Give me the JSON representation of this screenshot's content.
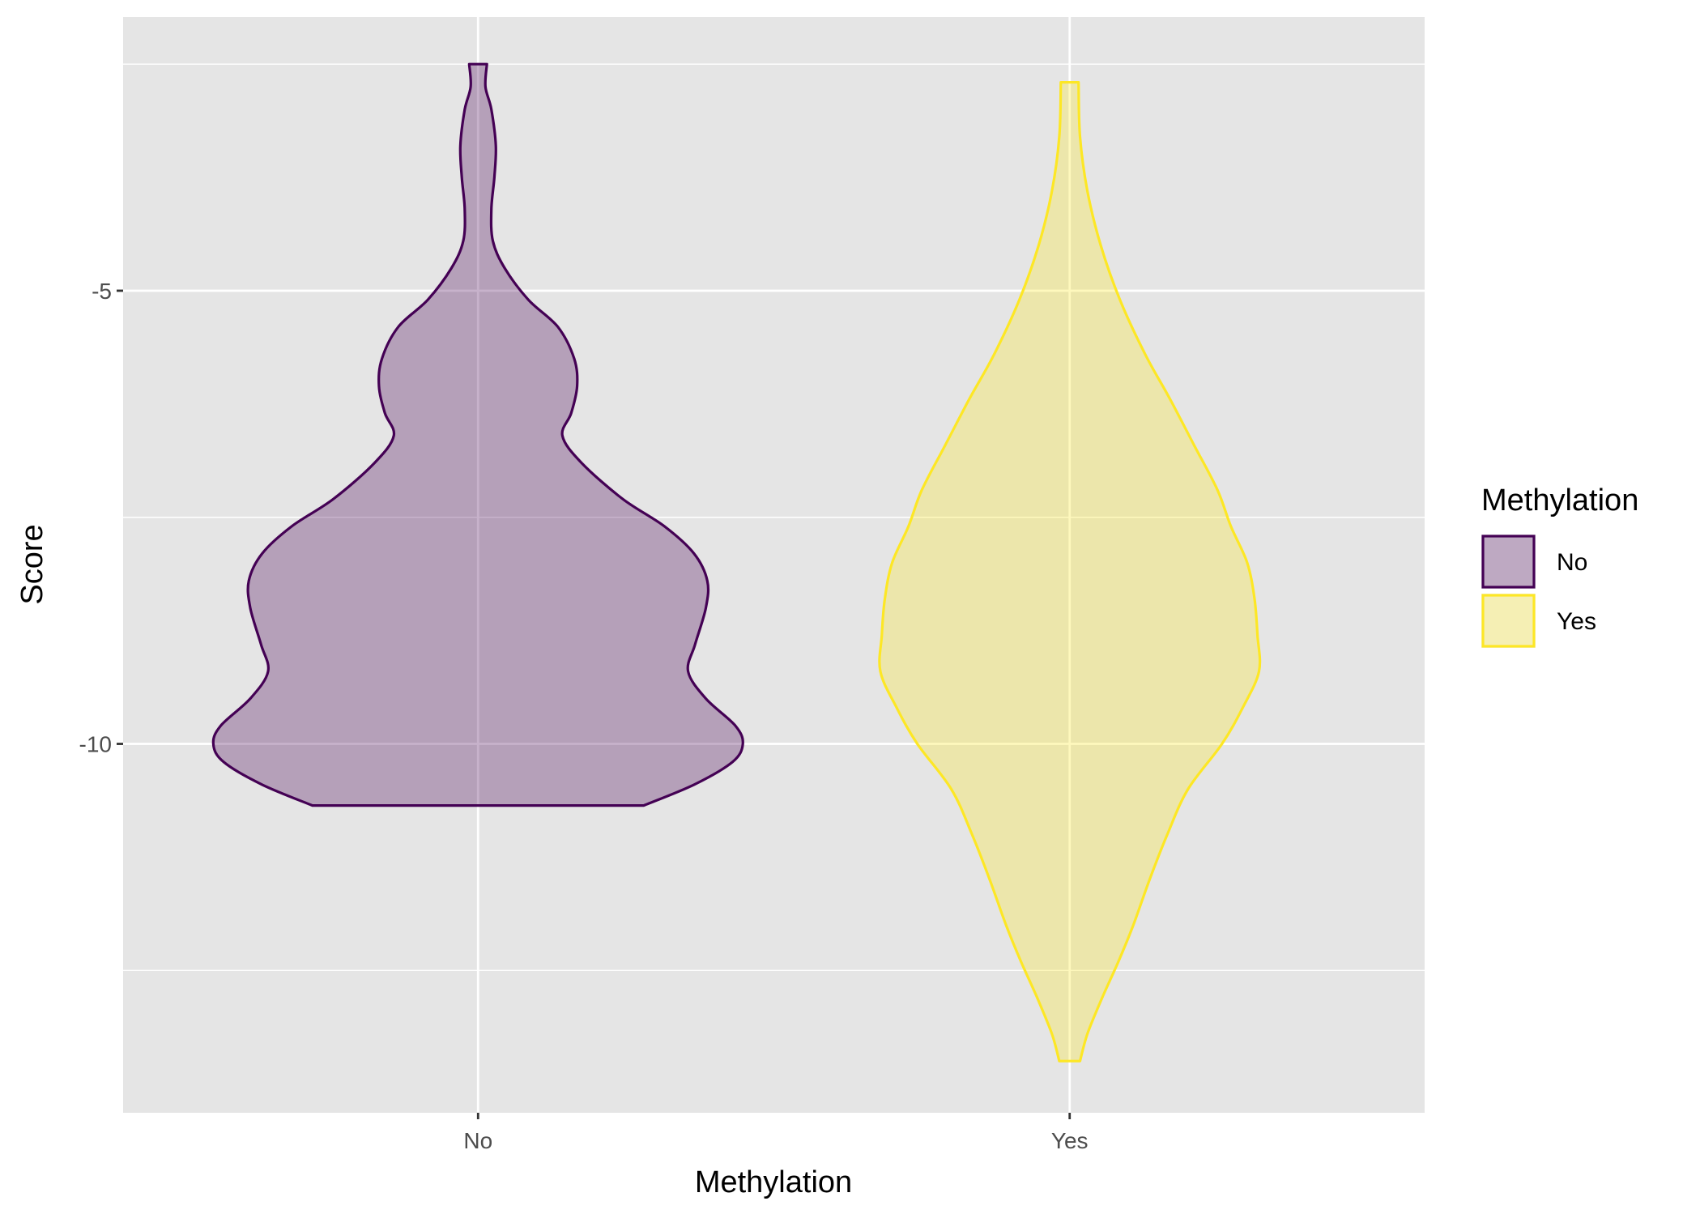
{
  "chart_data": {
    "type": "violin",
    "xlabel": "Methylation",
    "ylabel": "Score",
    "categories": [
      "No",
      "Yes"
    ],
    "ylim": [
      -14.07,
      -1.98
    ],
    "y_ticks": [
      -10,
      -5
    ],
    "y_tick_labels": [
      "-10",
      "-5"
    ],
    "grid": true,
    "legend": {
      "title": "Methylation",
      "position": "right",
      "entries": [
        "No",
        "Yes"
      ]
    },
    "series": [
      {
        "name": "No",
        "fill": "#440154",
        "stroke": "#440154",
        "fill_opacity": 0.3,
        "y_range": [
          -10.68,
          -2.5
        ],
        "density_profile": [
          [
            -10.68,
            0.56
          ],
          [
            -10.45,
            0.73
          ],
          [
            -10.2,
            0.86
          ],
          [
            -10.0,
            0.895
          ],
          [
            -9.8,
            0.87
          ],
          [
            -9.5,
            0.77
          ],
          [
            -9.2,
            0.71
          ],
          [
            -8.9,
            0.734
          ],
          [
            -8.5,
            0.77
          ],
          [
            -8.2,
            0.775
          ],
          [
            -7.9,
            0.73
          ],
          [
            -7.6,
            0.63
          ],
          [
            -7.3,
            0.49
          ],
          [
            -6.9,
            0.35
          ],
          [
            -6.6,
            0.285
          ],
          [
            -6.35,
            0.315
          ],
          [
            -6.05,
            0.335
          ],
          [
            -5.75,
            0.325
          ],
          [
            -5.4,
            0.27
          ],
          [
            -5.1,
            0.17
          ],
          [
            -4.75,
            0.09
          ],
          [
            -4.45,
            0.05
          ],
          [
            -4.1,
            0.045
          ],
          [
            -3.75,
            0.055
          ],
          [
            -3.4,
            0.06
          ],
          [
            -3.0,
            0.045
          ],
          [
            -2.75,
            0.025
          ],
          [
            -2.5,
            0.03
          ]
        ]
      },
      {
        "name": "Yes",
        "fill": "#FDE725",
        "stroke": "#FDE725",
        "fill_opacity": 0.3,
        "y_range": [
          -13.5,
          -2.7
        ],
        "density_profile": [
          [
            -13.5,
            0.035
          ],
          [
            -13.2,
            0.06
          ],
          [
            -12.8,
            0.11
          ],
          [
            -12.4,
            0.165
          ],
          [
            -12.0,
            0.215
          ],
          [
            -11.5,
            0.27
          ],
          [
            -11.0,
            0.33
          ],
          [
            -10.5,
            0.4
          ],
          [
            -10.0,
            0.515
          ],
          [
            -9.6,
            0.585
          ],
          [
            -9.2,
            0.64
          ],
          [
            -8.8,
            0.635
          ],
          [
            -8.4,
            0.625
          ],
          [
            -8.0,
            0.6
          ],
          [
            -7.6,
            0.545
          ],
          [
            -7.2,
            0.5
          ],
          [
            -6.7,
            0.42
          ],
          [
            -6.2,
            0.34
          ],
          [
            -5.7,
            0.255
          ],
          [
            -5.1,
            0.17
          ],
          [
            -4.5,
            0.105
          ],
          [
            -3.9,
            0.06
          ],
          [
            -3.3,
            0.035
          ],
          [
            -2.7,
            0.03
          ]
        ]
      }
    ]
  }
}
